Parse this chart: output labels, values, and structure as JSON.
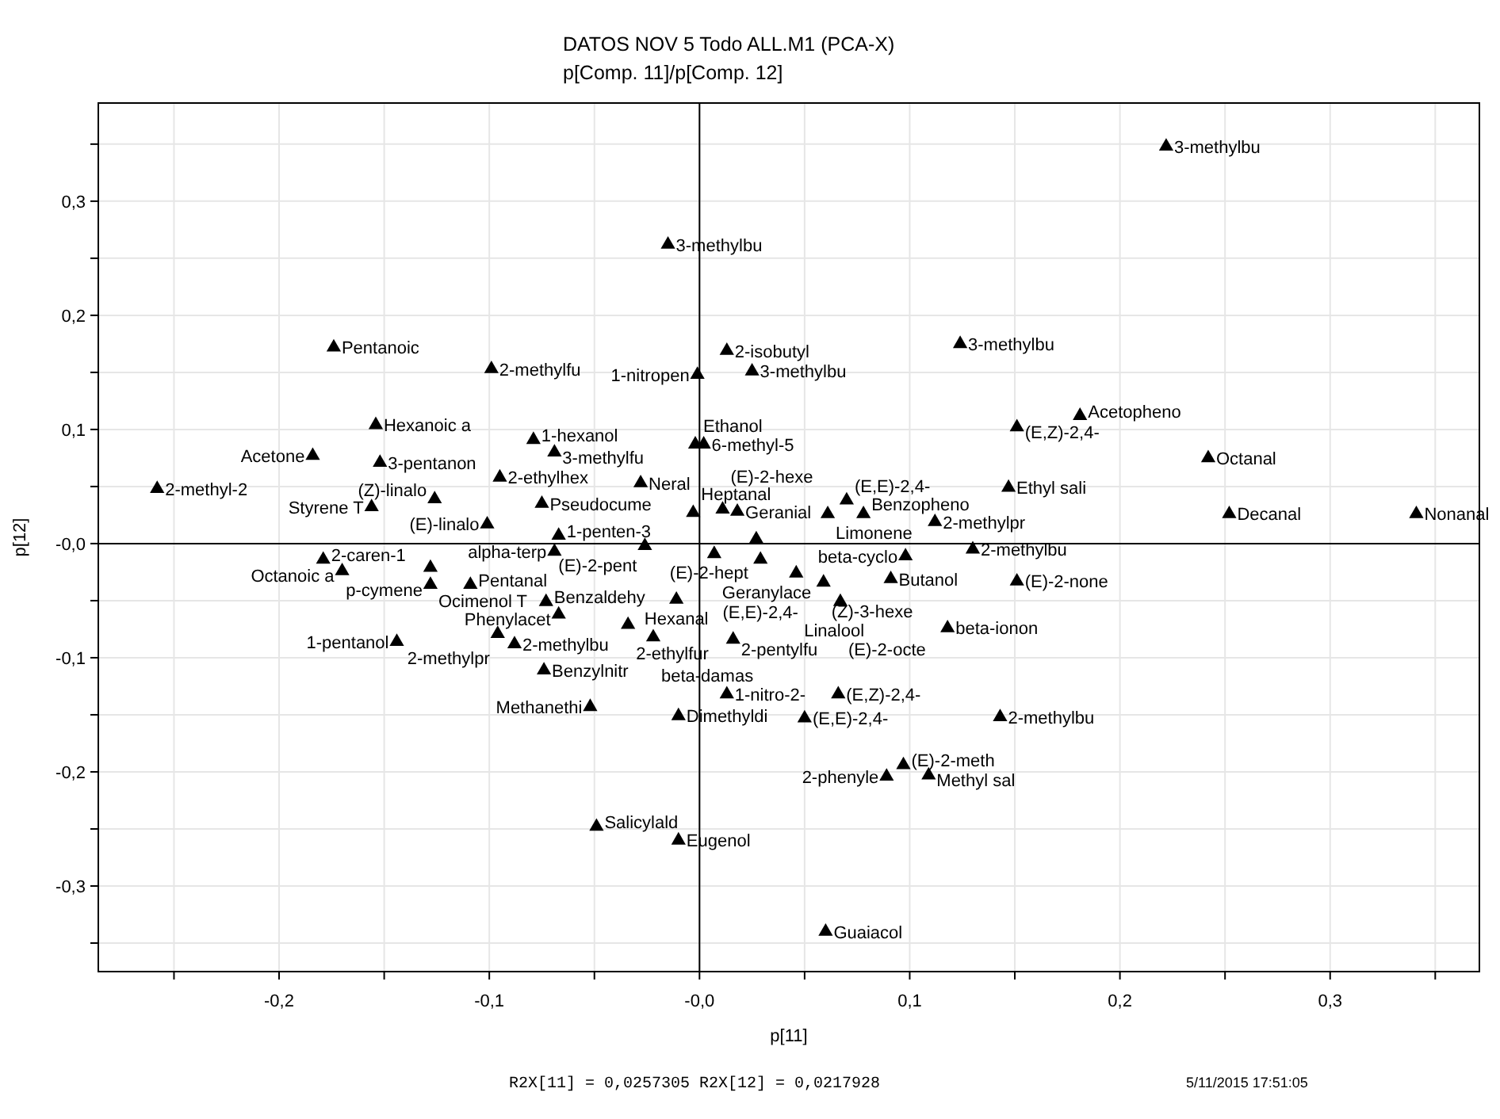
{
  "chart_data": {
    "type": "scatter",
    "title": "DATOS NOV 5 Todo ALL.M1 (PCA-X)",
    "subtitle": "p[Comp. 11]/p[Comp. 12]",
    "xlabel": "p[11]",
    "ylabel": "p[12]",
    "xlim": [
      -0.286,
      0.371
    ],
    "ylim": [
      -0.375,
      0.386
    ],
    "xticks": [
      {
        "value": -0.25,
        "label": null
      },
      {
        "value": -0.2,
        "label": "-0,2"
      },
      {
        "value": -0.15,
        "label": null
      },
      {
        "value": -0.1,
        "label": "-0,1"
      },
      {
        "value": -0.05,
        "label": null
      },
      {
        "value": 0,
        "label": "-0,0"
      },
      {
        "value": 0.05,
        "label": null
      },
      {
        "value": 0.1,
        "label": "0,1"
      },
      {
        "value": 0.15,
        "label": null
      },
      {
        "value": 0.2,
        "label": "0,2"
      },
      {
        "value": 0.25,
        "label": null
      },
      {
        "value": 0.3,
        "label": "0,3"
      },
      {
        "value": 0.35,
        "label": null
      }
    ],
    "yticks": [
      {
        "value": -0.35,
        "label": null
      },
      {
        "value": -0.3,
        "label": "-0,3"
      },
      {
        "value": -0.25,
        "label": null
      },
      {
        "value": -0.2,
        "label": "-0,2"
      },
      {
        "value": -0.15,
        "label": null
      },
      {
        "value": -0.1,
        "label": "-0,1"
      },
      {
        "value": -0.05,
        "label": null
      },
      {
        "value": 0,
        "label": "-0,0"
      },
      {
        "value": 0.05,
        "label": null
      },
      {
        "value": 0.1,
        "label": "0,1"
      },
      {
        "value": 0.15,
        "label": null
      },
      {
        "value": 0.2,
        "label": "0,2"
      },
      {
        "value": 0.25,
        "label": null
      },
      {
        "value": 0.3,
        "label": "0,3"
      },
      {
        "value": 0.35,
        "label": null
      }
    ],
    "grid": true,
    "legend": false,
    "marker": "triangle",
    "series": [
      {
        "color": "#000000",
        "x": [
          0.222,
          -0.015,
          -0.174,
          -0.099,
          -0.154,
          -0.079,
          -0.069,
          -0.184,
          -0.152,
          -0.095,
          -0.258,
          -0.156,
          -0.126,
          -0.075,
          -0.101,
          -0.067,
          -0.069,
          -0.179,
          -0.17,
          -0.128,
          -0.128,
          -0.109,
          -0.073,
          -0.067,
          -0.144,
          -0.096,
          -0.088,
          -0.074,
          -0.052,
          -0.01,
          -0.049,
          -0.01,
          0.013,
          0.066,
          0.05,
          0.143,
          0.097,
          0.089,
          0.109,
          0.06,
          0.013,
          -0.001,
          0.025,
          -0.002,
          0.002,
          -0.028,
          -0.003,
          0.011,
          0.018,
          0.061,
          0.078,
          0.07,
          0.112,
          0.027,
          -0.026,
          0.007,
          0.098,
          0.029,
          0.046,
          0.091,
          0.059,
          0.067,
          -0.011,
          -0.034,
          -0.022,
          0.016,
          0.118,
          0.124,
          0.151,
          0.181,
          0.242,
          0.147,
          0.252,
          0.341,
          0.13,
          0.151
        ],
        "values": [
          0.348,
          0.262,
          0.172,
          0.153,
          0.104,
          0.091,
          0.08,
          0.077,
          0.071,
          0.058,
          0.048,
          0.032,
          0.039,
          0.035,
          0.017,
          0.007,
          -0.007,
          -0.014,
          -0.024,
          -0.021,
          -0.036,
          -0.036,
          -0.051,
          -0.062,
          -0.086,
          -0.079,
          -0.088,
          -0.111,
          -0.143,
          -0.151,
          -0.248,
          -0.26,
          -0.132,
          -0.132,
          -0.153,
          -0.152,
          -0.194,
          -0.204,
          -0.203,
          -0.34,
          0.169,
          0.148,
          0.151,
          0.087,
          0.087,
          0.053,
          0.027,
          0.03,
          0.028,
          0.026,
          0.026,
          0.038,
          0.019,
          0.004,
          -0.002,
          -0.009,
          -0.011,
          -0.014,
          -0.026,
          -0.031,
          -0.034,
          -0.051,
          -0.049,
          -0.071,
          -0.082,
          -0.084,
          -0.074,
          0.175,
          0.102,
          0.112,
          0.075,
          0.049,
          0.026,
          0.026,
          -0.005,
          -0.033
        ]
      }
    ],
    "annotations": [
      {
        "text": "3-methylbu",
        "x": 0.222,
        "y": 0.348
      },
      {
        "text": "3-methylbu",
        "x": -0.015,
        "y": 0.262
      },
      {
        "text": "Pentanoic",
        "x": -0.174,
        "y": 0.172
      },
      {
        "text": "2-methylfu",
        "x": -0.099,
        "y": 0.153
      },
      {
        "text": "Hexanoic a",
        "x": -0.154,
        "y": 0.104
      },
      {
        "text": "1-hexanol",
        "x": -0.079,
        "y": 0.091
      },
      {
        "text": "3-methylfu",
        "x": -0.069,
        "y": 0.08
      },
      {
        "text": "Acetone",
        "x": -0.184,
        "y": 0.077
      },
      {
        "text": "3-pentanon",
        "x": -0.152,
        "y": 0.071
      },
      {
        "text": "2-ethylhex",
        "x": -0.095,
        "y": 0.058
      },
      {
        "text": "2-methyl-2",
        "x": -0.258,
        "y": 0.048
      },
      {
        "text": "Styrene T",
        "x": -0.156,
        "y": 0.032
      },
      {
        "text": "(Z)-linalo",
        "x": -0.126,
        "y": 0.039
      },
      {
        "text": "Pseudocume",
        "x": -0.075,
        "y": 0.035
      },
      {
        "text": "(E)-linalo",
        "x": -0.101,
        "y": 0.017
      },
      {
        "text": "1-penten-3",
        "x": -0.067,
        "y": 0.007
      },
      {
        "text": "alpha-terp",
        "x": -0.069,
        "y": -0.007
      },
      {
        "text": "2-caren-1",
        "x": -0.179,
        "y": -0.014
      },
      {
        "text": "Octanoic a",
        "x": -0.17,
        "y": -0.024
      },
      {
        "text": "Ocimenol T",
        "x": -0.128,
        "y": -0.021
      },
      {
        "text": "p-cymene",
        "x": -0.128,
        "y": -0.036
      },
      {
        "text": "Pentanal",
        "x": -0.109,
        "y": -0.036
      },
      {
        "text": "Benzaldehy",
        "x": -0.073,
        "y": -0.051
      },
      {
        "text": "Phenylacet",
        "x": -0.067,
        "y": -0.062
      },
      {
        "text": "1-pentanol",
        "x": -0.144,
        "y": -0.086
      },
      {
        "text": "2-methylpr",
        "x": -0.096,
        "y": -0.079
      },
      {
        "text": "2-methylbu",
        "x": -0.088,
        "y": -0.088
      },
      {
        "text": "Benzylnitr",
        "x": -0.074,
        "y": -0.111
      },
      {
        "text": "Methanethi",
        "x": -0.052,
        "y": -0.143
      },
      {
        "text": "Dimethyldi",
        "x": -0.01,
        "y": -0.151
      },
      {
        "text": "Salicylald",
        "x": -0.049,
        "y": -0.248
      },
      {
        "text": "Eugenol",
        "x": -0.01,
        "y": -0.26
      },
      {
        "text": "1-nitro-2-",
        "x": 0.013,
        "y": -0.132
      },
      {
        "text": "(E,Z)-2,4-",
        "x": 0.066,
        "y": -0.132
      },
      {
        "text": "(E,E)-2,4-",
        "x": 0.05,
        "y": -0.153
      },
      {
        "text": "2-methylbu",
        "x": 0.143,
        "y": -0.152
      },
      {
        "text": "(E)-2-meth",
        "x": 0.097,
        "y": -0.194
      },
      {
        "text": "2-phenyle",
        "x": 0.089,
        "y": -0.204
      },
      {
        "text": "Methyl sal",
        "x": 0.109,
        "y": -0.203
      },
      {
        "text": "Guaiacol",
        "x": 0.06,
        "y": -0.34
      },
      {
        "text": "2-isobutyl",
        "x": 0.013,
        "y": 0.169
      },
      {
        "text": "1-nitropen",
        "x": -0.001,
        "y": 0.148
      },
      {
        "text": "3-methylbu",
        "x": 0.025,
        "y": 0.151
      },
      {
        "text": "Ethanol",
        "x": -0.002,
        "y": 0.087
      },
      {
        "text": "6-methyl-5",
        "x": 0.002,
        "y": 0.087
      },
      {
        "text": "Neral",
        "x": -0.028,
        "y": 0.053
      },
      {
        "text": "Heptanal",
        "x": -0.003,
        "y": 0.027
      },
      {
        "text": "(E)-2-hexe",
        "x": 0.011,
        "y": 0.03
      },
      {
        "text": "Geranial",
        "x": 0.018,
        "y": 0.028
      },
      {
        "text": "Limonene",
        "x": 0.061,
        "y": 0.026
      },
      {
        "text": "Benzopheno",
        "x": 0.078,
        "y": 0.026
      },
      {
        "text": "(E,E)-2,4-",
        "x": 0.07,
        "y": 0.038
      },
      {
        "text": "2-methylpr",
        "x": 0.112,
        "y": 0.019
      },
      {
        "text": "(E)-2-hept",
        "x": 0.027,
        "y": 0.004
      },
      {
        "text": "(E)-2-pent",
        "x": -0.026,
        "y": -0.002
      },
      {
        "text": "Geranylace",
        "x": 0.007,
        "y": -0.009
      },
      {
        "text": "beta-cyclo",
        "x": 0.098,
        "y": -0.011
      },
      {
        "text": "(E,E)-2,4-",
        "x": 0.029,
        "y": -0.014
      },
      {
        "text": "Linalool",
        "x": 0.046,
        "y": -0.026
      },
      {
        "text": "Butanol",
        "x": 0.091,
        "y": -0.031
      },
      {
        "text": "(Z)-3-hexe",
        "x": 0.059,
        "y": -0.034
      },
      {
        "text": "(E)-2-octe",
        "x": 0.067,
        "y": -0.051
      },
      {
        "text": "Hexanal",
        "x": -0.011,
        "y": -0.049
      },
      {
        "text": "2-ethylfur",
        "x": -0.034,
        "y": -0.071
      },
      {
        "text": "beta-damas",
        "x": -0.022,
        "y": -0.082
      },
      {
        "text": "2-pentylfu",
        "x": 0.016,
        "y": -0.084
      },
      {
        "text": "beta-ionon",
        "x": 0.118,
        "y": -0.074
      },
      {
        "text": "3-methylbu",
        "x": 0.124,
        "y": 0.175
      },
      {
        "text": "(E,Z)-2,4-",
        "x": 0.151,
        "y": 0.102
      },
      {
        "text": "Acetopheno",
        "x": 0.181,
        "y": 0.112
      },
      {
        "text": "Octanal",
        "x": 0.242,
        "y": 0.075
      },
      {
        "text": "Ethyl sali",
        "x": 0.147,
        "y": 0.049
      },
      {
        "text": "Decanal",
        "x": 0.252,
        "y": 0.026
      },
      {
        "text": "Nonanal",
        "x": 0.341,
        "y": 0.026
      },
      {
        "text": "2-methylbu",
        "x": 0.13,
        "y": -0.005
      },
      {
        "text": "(E)-2-none",
        "x": 0.151,
        "y": -0.033
      },
      "R2X[11] = 0,0257305 R2X[12] = 0,0217928",
      "5/11/2015 17:51:05"
    ]
  }
}
